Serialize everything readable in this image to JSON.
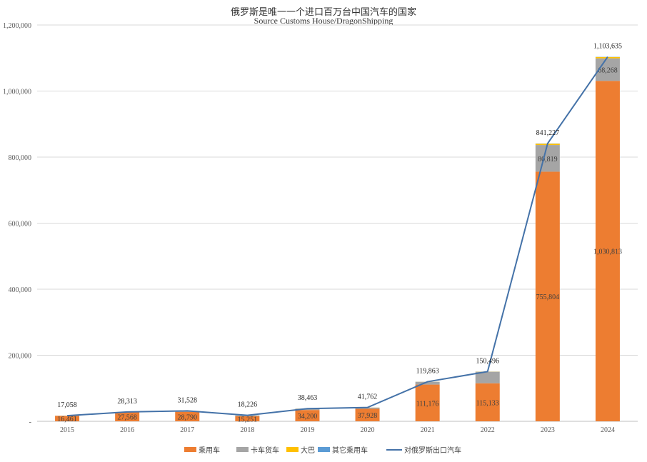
{
  "chart_data": {
    "type": "bar",
    "title": "俄罗斯是唯一一个进口百万台中国汽车的国家",
    "subtitle": "Source  Customs House/DragonShipping",
    "categories": [
      "2015",
      "2016",
      "2017",
      "2018",
      "2019",
      "2020",
      "2021",
      "2022",
      "2023",
      "2024"
    ],
    "ylim": [
      0,
      1200000
    ],
    "yticks": [
      "-",
      "200,000",
      "400,000",
      "600,000",
      "800,000",
      "1,000,000",
      "1,200,000"
    ],
    "grid": true,
    "legend_position": "bottom",
    "colors": {
      "passenger": "#ED7D31",
      "truck": "#A5A5A5",
      "bus": "#FFC000",
      "other_passenger": "#5B9BD5",
      "line": "#4472A8"
    },
    "series": [
      {
        "name": "乘用车",
        "kind": "bar",
        "values": [
          16461,
          27568,
          28790,
          15251,
          34200,
          37928,
          111176,
          115133,
          755804,
          1030813
        ],
        "labels": [
          "16,461",
          "27,568",
          "28,790",
          "15,251",
          "34,200",
          "37,928",
          "111,176",
          "115,133",
          "755,804",
          "1,030,813"
        ]
      },
      {
        "name": "卡车货车",
        "kind": "bar",
        "values": [
          400,
          500,
          2500,
          2700,
          4000,
          3600,
          8500,
          35000,
          80819,
          68268
        ],
        "labels": [
          null,
          null,
          null,
          null,
          null,
          null,
          null,
          null,
          "80,819",
          "68,268"
        ]
      },
      {
        "name": "大巴",
        "kind": "bar",
        "values": [
          150,
          200,
          200,
          200,
          200,
          200,
          150,
          300,
          4000,
          4000
        ]
      },
      {
        "name": "其它乘用车",
        "kind": "bar",
        "values": [
          47,
          45,
          38,
          75,
          63,
          34,
          37,
          63,
          604,
          554
        ]
      },
      {
        "name": "对俄罗斯出口汽车",
        "kind": "line",
        "values": [
          17058,
          28313,
          31528,
          18226,
          38463,
          41762,
          119863,
          150496,
          841227,
          1103635
        ],
        "labels": [
          "17,058",
          "28,313",
          "31,528",
          "18,226",
          "38,463",
          "41,762",
          "119,863",
          "150,496",
          "841,227",
          "1,103,635"
        ]
      }
    ]
  }
}
